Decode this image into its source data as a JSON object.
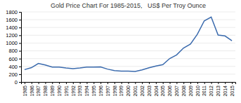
{
  "chart_data": {
    "type": "line",
    "title": "Gold Price Chart For 1985-2015,   US$ Per Troy Ounce",
    "x": [
      1985,
      1986,
      1987,
      1988,
      1989,
      1990,
      1991,
      1992,
      1993,
      1994,
      1995,
      1996,
      1997,
      1998,
      1999,
      2000,
      2001,
      2002,
      2003,
      2004,
      2005,
      2006,
      2007,
      2008,
      2009,
      2010,
      2011,
      2012,
      2013,
      2014,
      2015
    ],
    "values": [
      317,
      368,
      477,
      437,
      381,
      384,
      362,
      344,
      360,
      384,
      384,
      388,
      331,
      294,
      279,
      279,
      271,
      310,
      364,
      410,
      444,
      603,
      695,
      872,
      972,
      1225,
      1571,
      1669,
      1204,
      1182,
      1060
    ],
    "color": "#3A6AAD",
    "xlim": [
      1984.5,
      2015.5
    ],
    "xticks": [
      1985,
      1986,
      1987,
      1988,
      1989,
      1990,
      1991,
      1992,
      1993,
      1994,
      1995,
      1996,
      1997,
      1998,
      1999,
      2000,
      2001,
      2002,
      2003,
      2004,
      2005,
      2006,
      2007,
      2008,
      2009,
      2010,
      2011,
      2012,
      2013,
      2014,
      2015
    ],
    "ylim": [
      0,
      1800
    ],
    "yticks": [
      0,
      200,
      400,
      600,
      800,
      1000,
      1200,
      1400,
      1600,
      1800
    ],
    "grid": "y"
  }
}
